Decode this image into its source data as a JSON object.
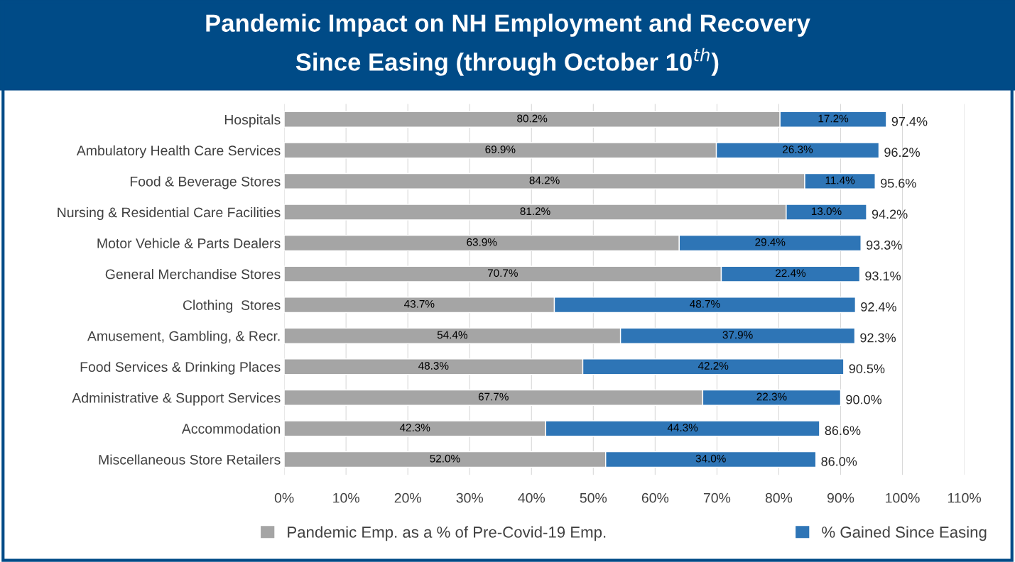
{
  "chart_data": {
    "type": "bar",
    "orientation": "horizontal",
    "stacked": true,
    "title": "Pandemic Impact on NH Employment and Recovery\nSince Easing (through October 10$^{th}$)",
    "categories": [
      "Hospitals",
      "Ambulatory Health Care Services",
      "Food & Beverage Stores",
      "Nursing & Residential Care Facilities",
      "Motor Vehicle & Parts Dealers",
      "General Merchandise Stores",
      "Clothing  Stores",
      "Amusement, Gambling, & Recr.",
      "Food Services & Drinking Places",
      "Administrative & Support Services",
      "Accommodation",
      "Miscellaneous Store Retailers"
    ],
    "series": [
      {
        "name": "Pandemic Emp. as a % of Pre-Covid-19 Emp.",
        "color": "#a5a5a5",
        "values": [
          80.2,
          69.9,
          84.2,
          81.2,
          63.9,
          70.7,
          43.7,
          54.4,
          48.3,
          67.7,
          42.3,
          52.0
        ],
        "value_labels": [
          "80.2%",
          "69.9%",
          "84.2%",
          "81.2%",
          "63.9%",
          "70.7%",
          "43.7%",
          "54.4%",
          "48.3%",
          "67.7%",
          "42.3%",
          "52.0%"
        ]
      },
      {
        "name": "% Gained Since Easing",
        "color": "#2e75b6",
        "values": [
          17.2,
          26.3,
          11.4,
          13.0,
          29.4,
          22.4,
          48.7,
          37.9,
          42.2,
          22.3,
          44.3,
          34.0
        ],
        "value_labels": [
          "17.2%",
          "26.3%",
          "11.4%",
          "13.0%",
          "29.4%",
          "22.4%",
          "48.7%",
          "37.9%",
          "42.2%",
          "22.3%",
          "44.3%",
          "34.0%"
        ]
      }
    ],
    "totals": [
      "97.4%",
      "96.2%",
      "95.6%",
      "94.2%",
      "93.3%",
      "93.1%",
      "92.4%",
      "92.3%",
      "90.5%",
      "90.0%",
      "86.6%",
      "86.0%"
    ],
    "xlim": [
      0,
      110
    ],
    "xticks": [
      {
        "value": 0,
        "label": "0%"
      },
      {
        "value": 10,
        "label": "10%"
      },
      {
        "value": 20,
        "label": "20%"
      },
      {
        "value": 30,
        "label": "30%"
      },
      {
        "value": 40,
        "label": "40%"
      },
      {
        "value": 50,
        "label": "50%"
      },
      {
        "value": 60,
        "label": "60%"
      },
      {
        "value": 70,
        "label": "70%"
      },
      {
        "value": 80,
        "label": "80%"
      },
      {
        "value": 90,
        "label": "90%"
      },
      {
        "value": 100,
        "label": "100%"
      },
      {
        "value": 110,
        "label": "110%"
      }
    ],
    "grid": "x",
    "legend": "bottom"
  }
}
